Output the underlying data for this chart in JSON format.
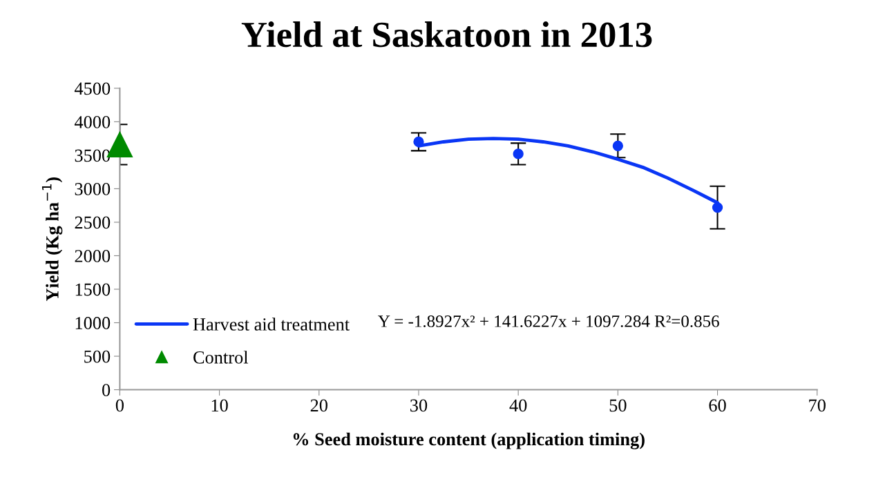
{
  "chart_data": {
    "type": "scatter",
    "title": "Yield at Saskatoon in 2013",
    "xlabel": "% Seed moisture content (application timing)",
    "ylabel": "Yield (Kg ha$^{−1}$)",
    "xlim": [
      0,
      70
    ],
    "xticks": [
      0,
      10,
      20,
      30,
      40,
      50,
      60,
      70
    ],
    "ylim": [
      0,
      4500
    ],
    "yticks": [
      0,
      500,
      1000,
      1500,
      2000,
      2500,
      3000,
      3500,
      4000,
      4500
    ],
    "grid": false,
    "legend": "bottom left",
    "series": [
      {
        "type": "scatter",
        "color": "#0a36f5",
        "marker": "circle",
        "x": [
          30,
          40,
          50,
          60
        ],
        "values": [
          3700,
          3520,
          3640,
          2720
        ],
        "errors": [
          133,
          160,
          175,
          318
        ]
      },
      {
        "type": "line",
        "name": "Harvest aid treatment",
        "color": "#0a36f5",
        "marker": "none",
        "line_style": "solid",
        "x": [
          30,
          32.5,
          35,
          37.5,
          40,
          42.5,
          45,
          47.5,
          50,
          52.5,
          55,
          57.5,
          60
        ],
        "values": [
          3640,
          3700,
          3740,
          3750,
          3740,
          3700,
          3640,
          3550,
          3440,
          3320,
          3160,
          2980,
          2790
        ]
      },
      {
        "type": "scatter",
        "name": "Control",
        "color": "#008a00",
        "marker": "triangle",
        "x": [
          0
        ],
        "values": [
          3660
        ],
        "errors": [
          300
        ]
      }
    ],
    "annotations": [
      "Y = -1.8927x² + 141.6227x + 1097.284 R²=0.856"
    ]
  }
}
